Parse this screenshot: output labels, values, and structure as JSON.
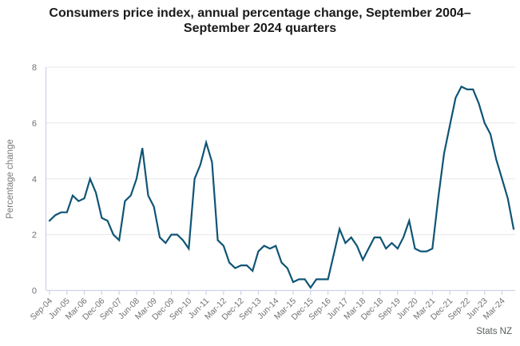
{
  "header": {
    "title": "Consumers price index, annual percentage change, September 2004–September 2024 quarters"
  },
  "footer": {
    "attribution": "Stats NZ"
  },
  "chart_data": {
    "type": "line",
    "title": "Consumers price index, annual percentage change, September 2004–September 2024 quarters",
    "xlabel": "",
    "ylabel": "Percentage change",
    "ylim": [
      0,
      8
    ],
    "yticks": [
      0,
      2,
      4,
      6,
      8
    ],
    "grid": "horizontal",
    "legend_position": "none",
    "series_name": "CPI annual percentage change (%)",
    "x": [
      "Sep-04",
      "Dec-04",
      "Mar-05",
      "Jun-05",
      "Sep-05",
      "Dec-05",
      "Mar-06",
      "Jun-06",
      "Sep-06",
      "Dec-06",
      "Mar-07",
      "Jun-07",
      "Sep-07",
      "Dec-07",
      "Mar-08",
      "Jun-08",
      "Sep-08",
      "Dec-08",
      "Mar-09",
      "Jun-09",
      "Sep-09",
      "Dec-09",
      "Mar-10",
      "Jun-10",
      "Sep-10",
      "Dec-10",
      "Mar-11",
      "Jun-11",
      "Sep-11",
      "Dec-11",
      "Mar-12",
      "Jun-12",
      "Sep-12",
      "Dec-12",
      "Mar-13",
      "Jun-13",
      "Sep-13",
      "Dec-13",
      "Mar-14",
      "Jun-14",
      "Sep-14",
      "Dec-14",
      "Mar-15",
      "Jun-15",
      "Sep-15",
      "Dec-15",
      "Mar-16",
      "Jun-16",
      "Sep-16",
      "Dec-16",
      "Mar-17",
      "Jun-17",
      "Sep-17",
      "Dec-17",
      "Mar-18",
      "Jun-18",
      "Sep-18",
      "Dec-18",
      "Mar-19",
      "Jun-19",
      "Sep-19",
      "Dec-19",
      "Mar-20",
      "Jun-20",
      "Sep-20",
      "Dec-20",
      "Mar-21",
      "Jun-21",
      "Sep-21",
      "Dec-21",
      "Mar-22",
      "Jun-22",
      "Sep-22",
      "Dec-22",
      "Mar-23",
      "Jun-23",
      "Sep-23",
      "Dec-23",
      "Mar-24",
      "Jun-24",
      "Sep-24"
    ],
    "values": [
      2.5,
      2.7,
      2.8,
      2.8,
      3.4,
      3.2,
      3.3,
      4.0,
      3.5,
      2.6,
      2.5,
      2.0,
      1.8,
      3.2,
      3.4,
      4.0,
      5.1,
      3.4,
      3.0,
      1.9,
      1.7,
      2.0,
      2.0,
      1.8,
      1.5,
      4.0,
      4.5,
      5.3,
      4.6,
      1.8,
      1.6,
      1.0,
      0.8,
      0.9,
      0.9,
      0.7,
      1.4,
      1.6,
      1.5,
      1.6,
      1.0,
      0.8,
      0.3,
      0.4,
      0.4,
      0.1,
      0.4,
      0.4,
      0.4,
      1.3,
      2.2,
      1.7,
      1.9,
      1.6,
      1.1,
      1.5,
      1.9,
      1.9,
      1.5,
      1.7,
      1.5,
      1.9,
      2.5,
      1.5,
      1.4,
      1.4,
      1.5,
      3.3,
      4.9,
      5.9,
      6.9,
      7.3,
      7.2,
      7.2,
      6.7,
      6.0,
      5.6,
      4.7,
      4.0,
      3.3,
      2.2
    ],
    "xtick_every": 3,
    "xtick_labels": [
      "Sep-04",
      "Jun-05",
      "Mar-06",
      "Dec-06",
      "Sep-07",
      "Jun-08",
      "Mar-09",
      "Dec-09",
      "Sep-10",
      "Jun-11",
      "Mar-12",
      "Dec-12",
      "Sep-13",
      "Jun-14",
      "Mar-15",
      "Dec-15",
      "Sep-16",
      "Jun-17",
      "Mar-18",
      "Dec-18",
      "Sep-19",
      "Jun-20",
      "Mar-21",
      "Dec-21",
      "Sep-22",
      "Jun-23",
      "Mar-24"
    ],
    "colors": {
      "line": "#0f5575",
      "gridline": "#e8e8e8",
      "axis": "#cdd3eb",
      "tick_label": "#6f7173",
      "axis_title": "#77797b",
      "title": "#1a1a1a",
      "attribution": "#5a5e60"
    },
    "attribution": "Stats NZ"
  }
}
